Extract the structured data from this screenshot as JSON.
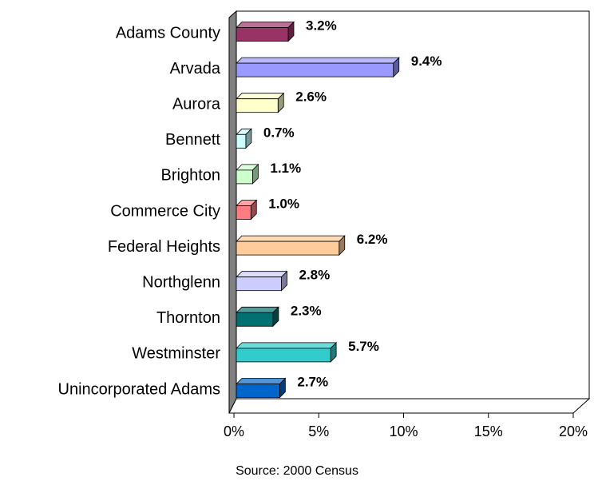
{
  "chart_data": {
    "type": "bar",
    "orientation": "horizontal",
    "categories": [
      "Adams County",
      "Arvada",
      "Aurora",
      "Bennett",
      "Brighton",
      "Commerce City",
      "Federal Heights",
      "Northglenn",
      "Thornton",
      "Westminster",
      "Unincorporated Adams"
    ],
    "values": [
      3.2,
      9.4,
      2.6,
      0.7,
      1.1,
      1.0,
      6.2,
      2.8,
      2.3,
      5.7,
      2.7
    ],
    "value_labels": [
      "3.2%",
      "9.4%",
      "2.6%",
      "0.7%",
      "1.1%",
      "1.0%",
      "6.2%",
      "2.8%",
      "2.3%",
      "5.7%",
      "2.7%"
    ],
    "colors": [
      "#993366",
      "#9999ff",
      "#ffffcc",
      "#ccffff",
      "#ccffcc",
      "#ff7c80",
      "#ffcc99",
      "#ccccff",
      "#007070",
      "#33cccc",
      "#0066cc"
    ],
    "xlim": [
      0,
      20
    ],
    "xticks": [
      {
        "value": 0,
        "label": "0%"
      },
      {
        "value": 5,
        "label": "5%"
      },
      {
        "value": 10,
        "label": "10%"
      },
      {
        "value": 15,
        "label": "15%"
      },
      {
        "value": 20,
        "label": "20%"
      }
    ],
    "grid": false,
    "note": "Source:  2000 Census"
  }
}
